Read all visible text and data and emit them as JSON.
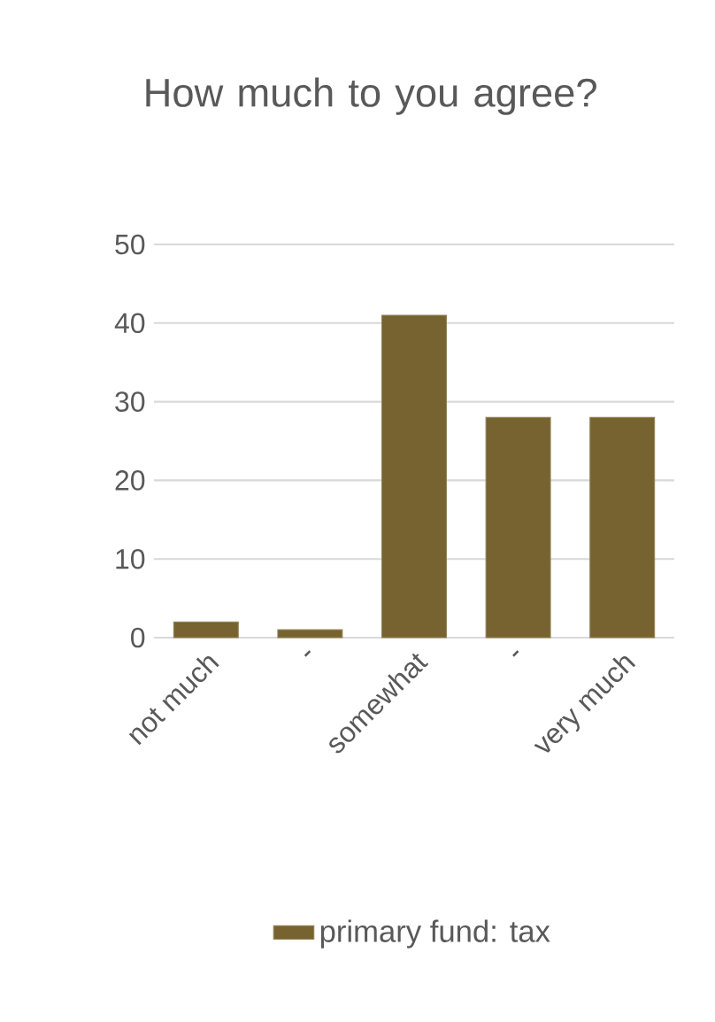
{
  "chart_data": {
    "type": "bar",
    "title": "How much to you agree?",
    "categories": [
      "not much",
      "-",
      "somewhat",
      "-",
      "very much"
    ],
    "series": [
      {
        "name": "primary fund: tax",
        "color": "#77632f",
        "values": [
          2,
          1,
          41,
          28,
          28
        ]
      }
    ],
    "ylim": [
      0,
      50
    ],
    "yticks": [
      0,
      10,
      20,
      30,
      40,
      50
    ],
    "grid": "y",
    "legend": "bottom"
  }
}
